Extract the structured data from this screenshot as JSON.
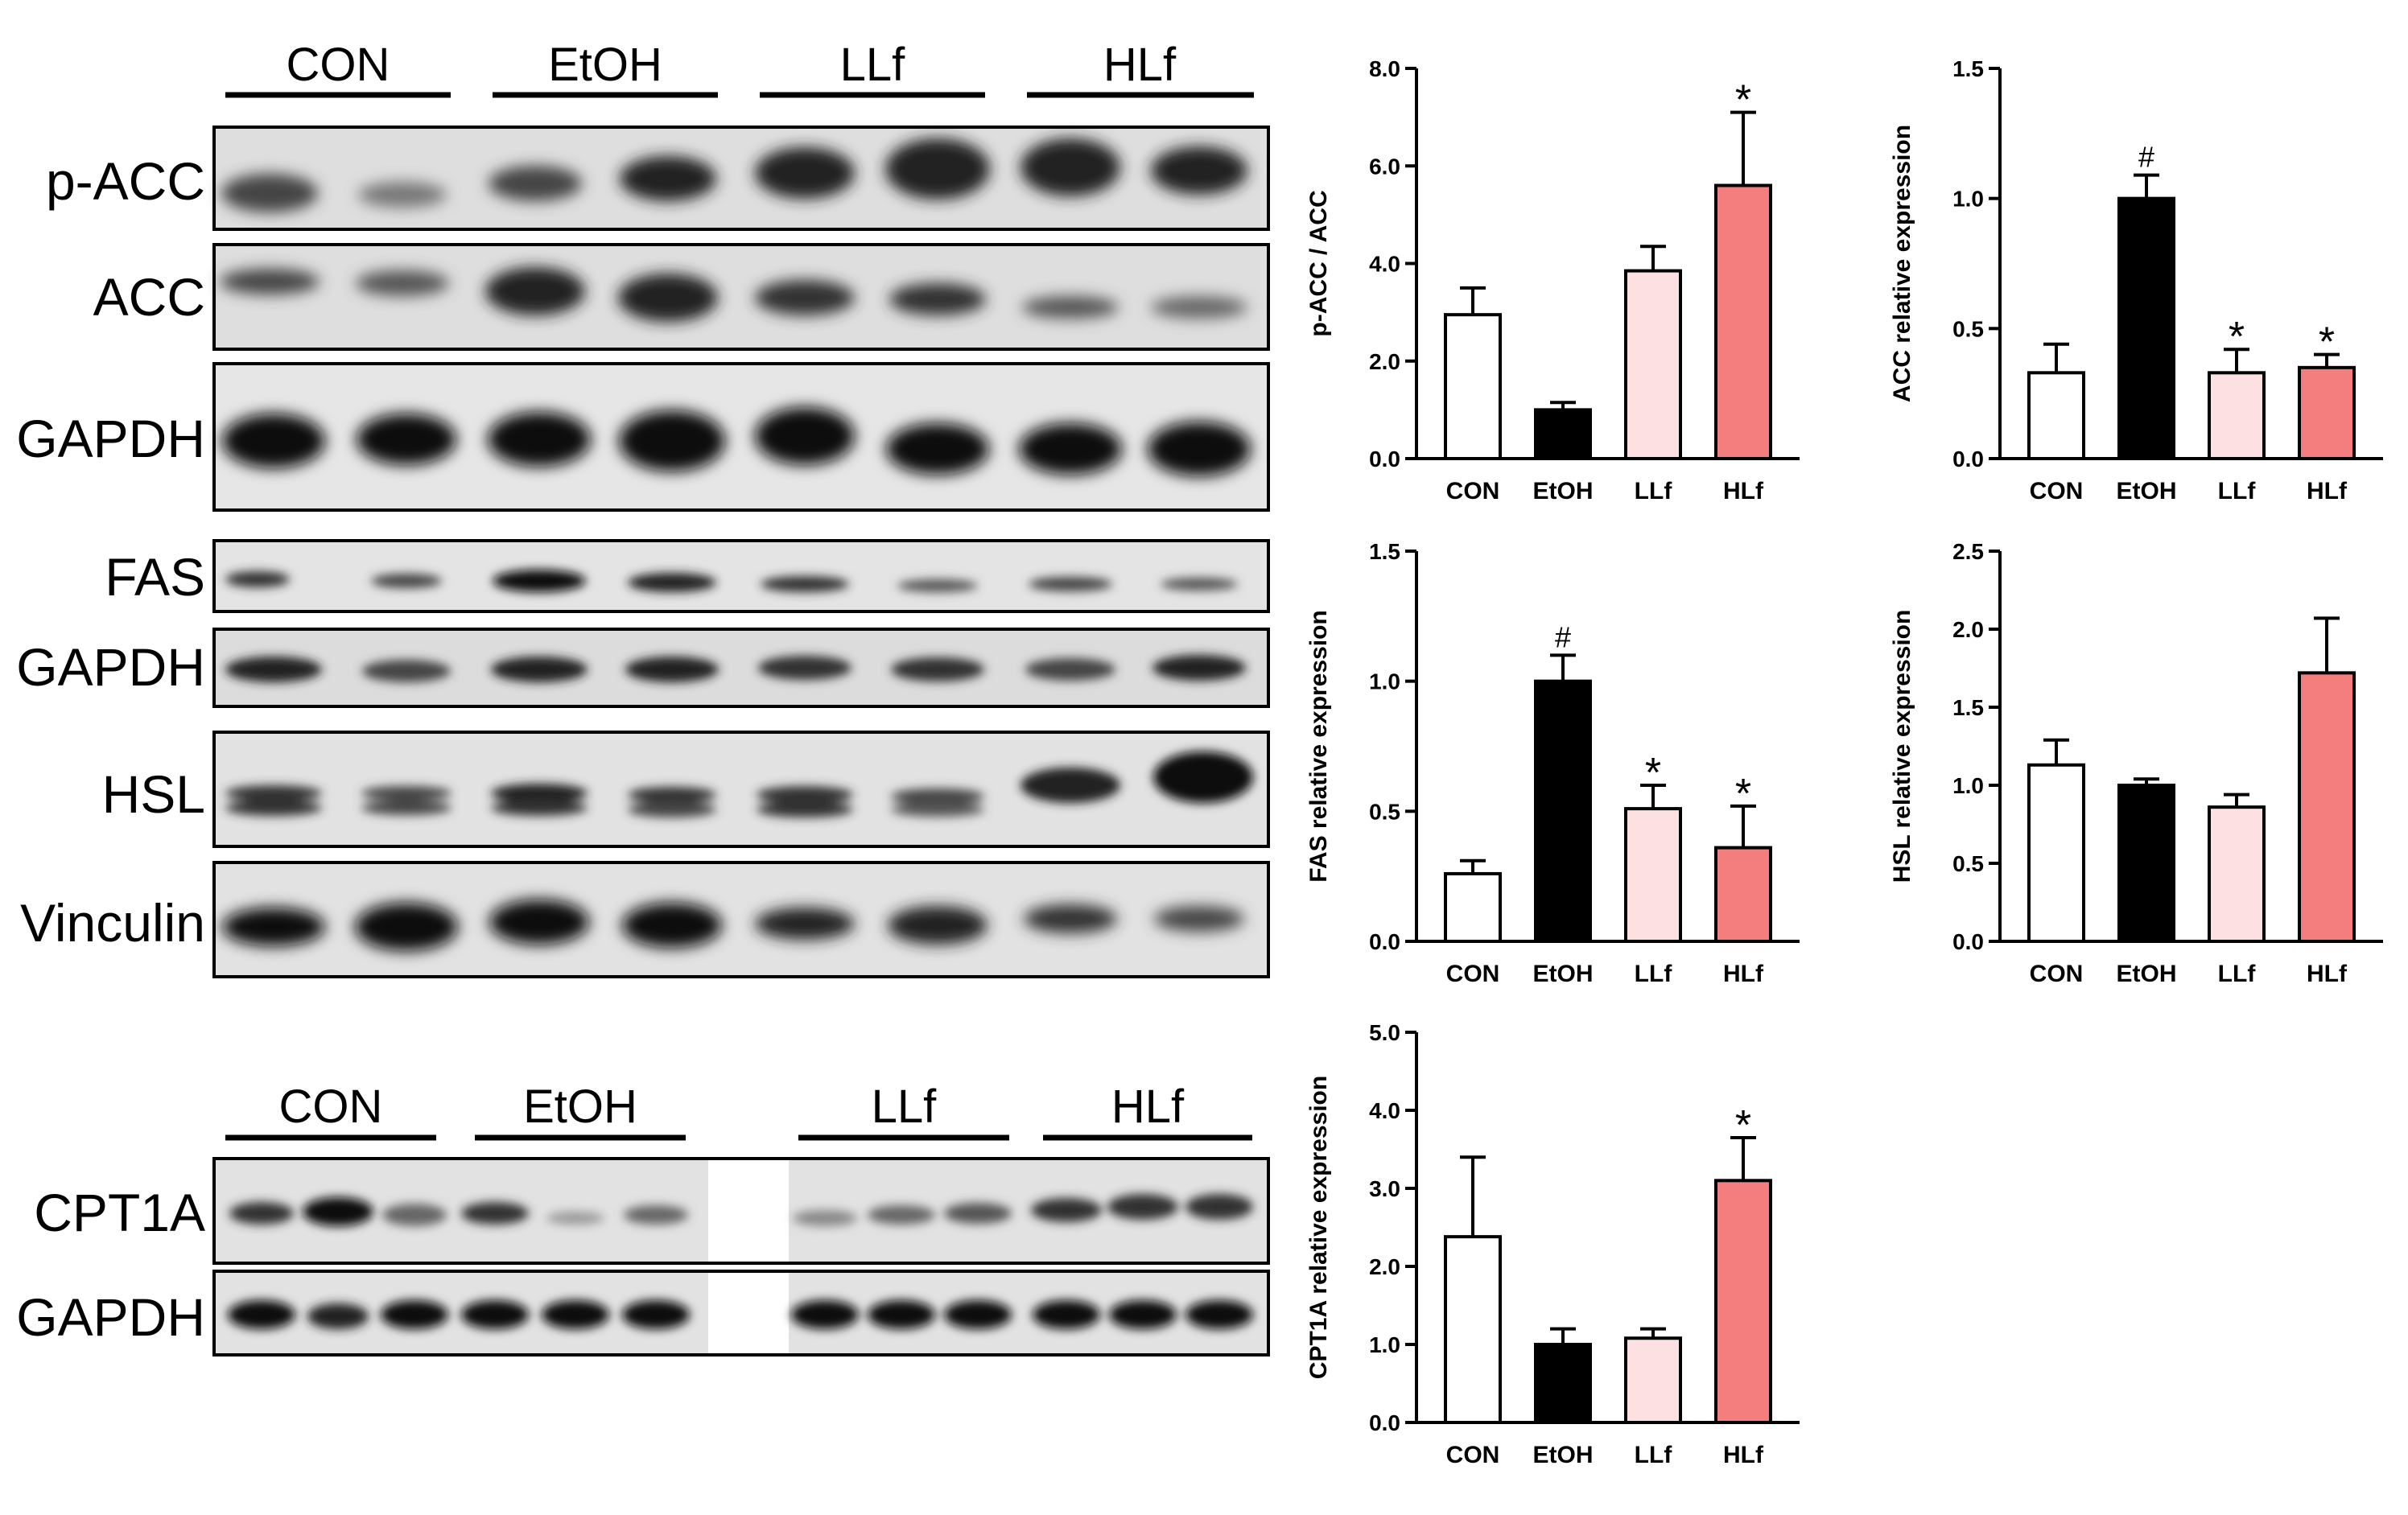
{
  "blots": {
    "top_groups": [
      "CON",
      "EtOH",
      "LLf",
      "HLf"
    ],
    "bottom_groups": [
      "CON",
      "EtOH",
      "LLf",
      "HLf"
    ],
    "rows": [
      {
        "label": "p-ACC"
      },
      {
        "label": "ACC"
      },
      {
        "label": "GAPDH"
      },
      {
        "label": "FAS"
      },
      {
        "label": "GAPDH"
      },
      {
        "label": "HSL"
      },
      {
        "label": "Vinculin"
      }
    ],
    "bottom_rows": [
      {
        "label": "CPT1A"
      },
      {
        "label": "GAPDH"
      }
    ]
  },
  "colors": {
    "CON": "#ffffff",
    "EtOH": "#000000",
    "LLf": "#fde0e1",
    "HLf": "#f47d7e",
    "axis": "#000000"
  },
  "chart_data": [
    {
      "type": "bar",
      "ylabel": "p-ACC / ACC",
      "categories": [
        "CON",
        "EtOH",
        "LLf",
        "HLf"
      ],
      "values": [
        2.95,
        1.0,
        3.85,
        5.6
      ],
      "errors": [
        0.55,
        0.15,
        0.5,
        1.5
      ],
      "annotations": [
        "",
        "",
        "",
        "*"
      ],
      "ylim": [
        0,
        8
      ],
      "yticks": [
        "0.0",
        "2.0",
        "4.0",
        "6.0",
        "8.0"
      ]
    },
    {
      "type": "bar",
      "ylabel": "ACC relative expression",
      "categories": [
        "CON",
        "EtOH",
        "LLf",
        "HLf"
      ],
      "values": [
        0.33,
        1.0,
        0.33,
        0.35
      ],
      "errors": [
        0.11,
        0.09,
        0.09,
        0.05
      ],
      "annotations": [
        "",
        "#",
        "*",
        "*"
      ],
      "ylim": [
        0,
        1.5
      ],
      "yticks": [
        "0.0",
        "0.5",
        "1.0",
        "1.5"
      ]
    },
    {
      "type": "bar",
      "ylabel": "FAS relative expression",
      "categories": [
        "CON",
        "EtOH",
        "LLf",
        "HLf"
      ],
      "values": [
        0.26,
        1.0,
        0.51,
        0.36
      ],
      "errors": [
        0.05,
        0.1,
        0.09,
        0.16
      ],
      "annotations": [
        "",
        "#",
        "*",
        "*"
      ],
      "ylim": [
        0,
        1.5
      ],
      "yticks": [
        "0.0",
        "0.5",
        "1.0",
        "1.5"
      ]
    },
    {
      "type": "bar",
      "ylabel": "HSL relative expression",
      "categories": [
        "CON",
        "EtOH",
        "LLf",
        "HLf"
      ],
      "values": [
        1.13,
        1.0,
        0.86,
        1.72
      ],
      "errors": [
        0.16,
        0.04,
        0.08,
        0.35
      ],
      "annotations": [
        "",
        "",
        "",
        ""
      ],
      "ylim": [
        0,
        2.5
      ],
      "yticks": [
        "0.0",
        "0.5",
        "1.0",
        "1.5",
        "2.0",
        "2.5"
      ]
    },
    {
      "type": "bar",
      "ylabel": "CPT1A relative expression",
      "categories": [
        "CON",
        "EtOH",
        "LLf",
        "HLf"
      ],
      "values": [
        2.38,
        1.0,
        1.08,
        3.1
      ],
      "errors": [
        1.02,
        0.2,
        0.12,
        0.55
      ],
      "annotations": [
        "",
        "",
        "",
        "*"
      ],
      "ylim": [
        0,
        5
      ],
      "yticks": [
        "0.0",
        "1.0",
        "2.0",
        "3.0",
        "4.0",
        "5.0"
      ]
    }
  ]
}
